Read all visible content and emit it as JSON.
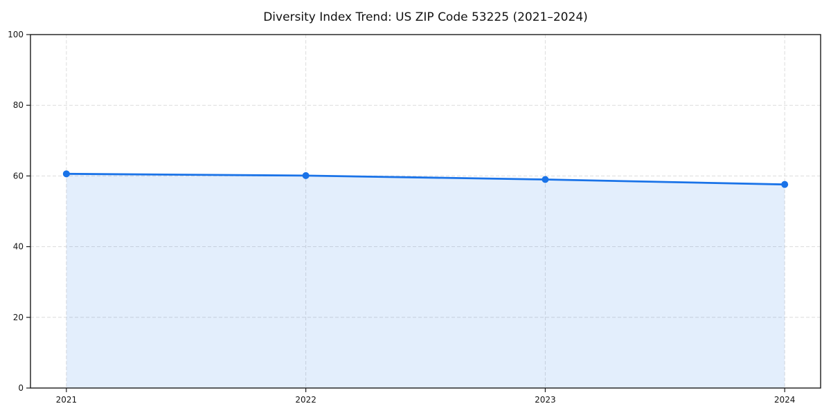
{
  "chart_data": {
    "type": "area",
    "title": "Diversity Index Trend: US ZIP Code 53225 (2021–2024)",
    "x": [
      2021,
      2022,
      2023,
      2024
    ],
    "categories": [
      "2021",
      "2022",
      "2023",
      "2024"
    ],
    "series": [
      {
        "name": "Diversity Index",
        "values": [
          60.6,
          60.1,
          59.0,
          57.6
        ]
      }
    ],
    "xlabel": "",
    "ylabel": "",
    "xlim": [
      2020.85,
      2024.15
    ],
    "ylim": [
      0,
      100
    ],
    "yticks": [
      0,
      20,
      40,
      60,
      80,
      100
    ],
    "grid": true,
    "grid_style": "dashed",
    "legend": "none",
    "marker": "circle",
    "colors": {
      "line": "#1a73e8",
      "marker": "#1a73e8",
      "fill": "rgba(26,115,232,0.12)",
      "gridline": "#dcdcdc",
      "axis": "#1a1a1a",
      "text": "#151515",
      "title_text": "#111111",
      "background": "#ffffff"
    }
  }
}
